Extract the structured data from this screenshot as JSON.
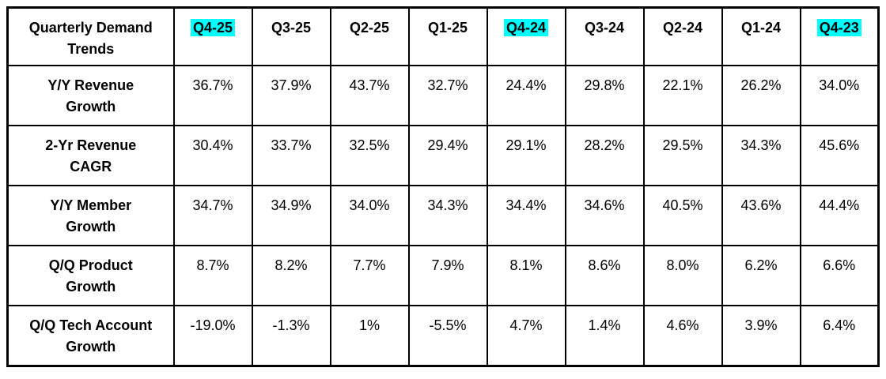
{
  "title": "Quarterly Demand Trends",
  "highlight_color": "#00FFFF",
  "text_color": "#000000",
  "border_color": "#000000",
  "background_color": "#FFFFFF",
  "chart_data": {
    "type": "table",
    "corner_label": "Quarterly Demand\nTrends",
    "columns": [
      {
        "label": "Q4-25",
        "highlighted": true
      },
      {
        "label": "Q3-25",
        "highlighted": false
      },
      {
        "label": "Q2-25",
        "highlighted": false
      },
      {
        "label": "Q1-25",
        "highlighted": false
      },
      {
        "label": "Q4-24",
        "highlighted": true
      },
      {
        "label": "Q3-24",
        "highlighted": false
      },
      {
        "label": "Q2-24",
        "highlighted": false
      },
      {
        "label": "Q1-24",
        "highlighted": false
      },
      {
        "label": "Q4-23",
        "highlighted": true
      }
    ],
    "rows": [
      {
        "key": "yy-revenue-growth",
        "label": "Y/Y Revenue\nGrowth",
        "values": [
          "36.7%",
          "37.9%",
          "43.7%",
          "32.7%",
          "24.4%",
          "29.8%",
          "22.1%",
          "26.2%",
          "34.0%"
        ]
      },
      {
        "key": "2yr-revenue-cagr",
        "label": "2-Yr Revenue\nCAGR",
        "values": [
          "30.4%",
          "33.7%",
          "32.5%",
          "29.4%",
          "29.1%",
          "28.2%",
          "29.5%",
          "34.3%",
          "45.6%"
        ]
      },
      {
        "key": "yy-member-growth",
        "label": "Y/Y Member\nGrowth",
        "values": [
          "34.7%",
          "34.9%",
          "34.0%",
          "34.3%",
          "34.4%",
          "34.6%",
          "40.5%",
          "43.6%",
          "44.4%"
        ]
      },
      {
        "key": "qq-product-growth",
        "label": "Q/Q Product\nGrowth",
        "values": [
          "8.7%",
          "8.2%",
          "7.7%",
          "7.9%",
          "8.1%",
          "8.6%",
          "8.0%",
          "6.2%",
          "6.6%"
        ]
      },
      {
        "key": "qq-tech-account-growth",
        "label": "Q/Q Tech Account\nGrowth",
        "values": [
          "-19.0%",
          "-1.3%",
          "1%",
          "-5.5%",
          "4.7%",
          "1.4%",
          "4.6%",
          "3.9%",
          "6.4%"
        ]
      }
    ]
  }
}
